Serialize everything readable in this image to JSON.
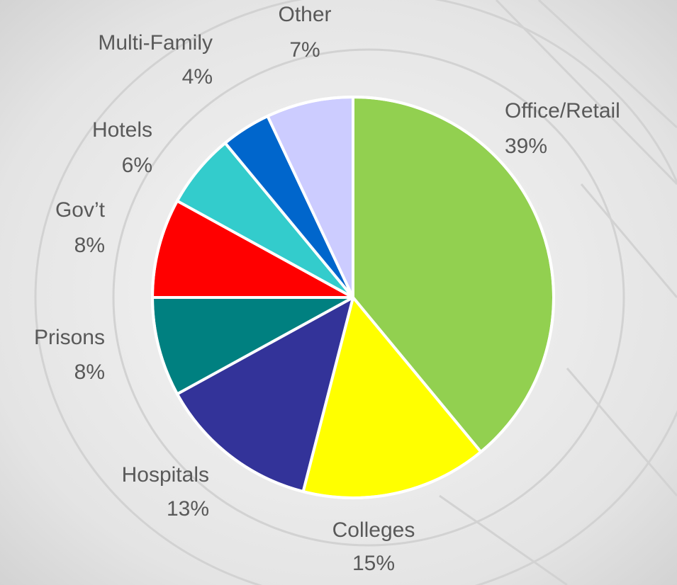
{
  "chart_data": {
    "type": "pie",
    "categories": [
      "Office/Retail",
      "Colleges",
      "Hospitals",
      "Prisons",
      "Gov’t",
      "Hotels",
      "Multi-Family",
      "Other"
    ],
    "values": [
      39,
      15,
      13,
      8,
      8,
      6,
      4,
      7
    ],
    "value_labels": [
      "39%",
      "15%",
      "13%",
      "8%",
      "8%",
      "6%",
      "4%",
      "7%"
    ],
    "colors": [
      "#92d050",
      "#ffff00",
      "#333399",
      "#008080",
      "#ff0000",
      "#33cccc",
      "#0066cc",
      "#ccccff"
    ]
  }
}
